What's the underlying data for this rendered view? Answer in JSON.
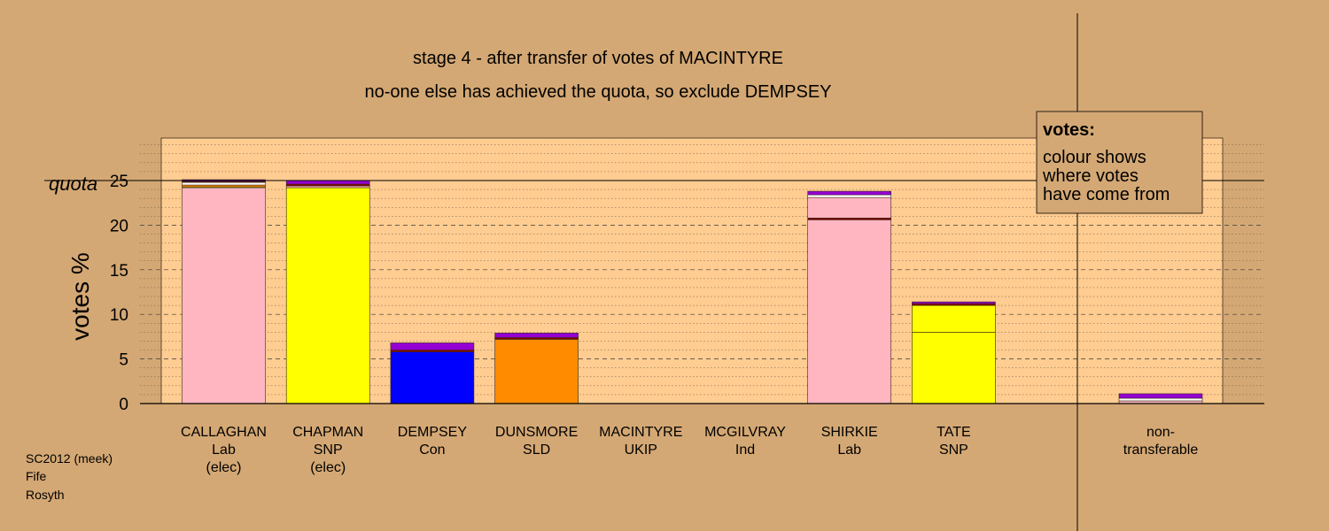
{
  "chart_data": {
    "type": "bar",
    "stacked": true,
    "title": "stage 4 - after transfer of votes of MACINTYRE",
    "subtitle": "no-one else has achieved the quota, so exclude DEMPSEY",
    "ylabel": "votes %",
    "ylim": [
      0,
      30
    ],
    "yticks": [
      "0",
      "5",
      "10",
      "15",
      "20",
      "25"
    ],
    "quota": {
      "label": "quota",
      "value": 25.0
    },
    "grid": true,
    "candidates": [
      {
        "name": "CALLAGHAN",
        "party": "Lab",
        "status": "(elec)",
        "segments": [
          {
            "value": 24.2,
            "color": "#ffb6c1"
          },
          {
            "value": 0.1,
            "color": "#ffff00"
          },
          {
            "value": 0.2,
            "color": "#ff8c00"
          },
          {
            "value": 0.3,
            "color": "#ffffff"
          },
          {
            "value": 0.1,
            "color": "#8b0000"
          },
          {
            "value": 0.2,
            "color": "#9400d3"
          }
        ]
      },
      {
        "name": "CHAPMAN",
        "party": "SNP",
        "status": "(elec)",
        "segments": [
          {
            "value": 24.2,
            "color": "#ffff00"
          },
          {
            "value": 0.2,
            "color": "#ffb6c1"
          },
          {
            "value": 0.2,
            "color": "#8b0000"
          },
          {
            "value": 0.4,
            "color": "#9400d3"
          }
        ]
      },
      {
        "name": "DEMPSEY",
        "party": "Con",
        "status": "",
        "segments": [
          {
            "value": 5.8,
            "color": "#0000ff"
          },
          {
            "value": 0.2,
            "color": "#8b0000"
          },
          {
            "value": 0.8,
            "color": "#9400d3"
          }
        ]
      },
      {
        "name": "DUNSMORE",
        "party": "SLD",
        "status": "",
        "segments": [
          {
            "value": 7.2,
            "color": "#ff8c00"
          },
          {
            "value": 0.2,
            "color": "#8b0000"
          },
          {
            "value": 0.5,
            "color": "#9400d3"
          }
        ]
      },
      {
        "name": "MACINTYRE",
        "party": "UKIP",
        "status": "",
        "segments": []
      },
      {
        "name": "MCGILVRAY",
        "party": "Ind",
        "status": "",
        "segments": []
      },
      {
        "name": "SHIRKIE",
        "party": "Lab",
        "status": "",
        "segments": [
          {
            "value": 20.6,
            "color": "#ffb6c1"
          },
          {
            "value": 0.2,
            "color": "#8b0000"
          },
          {
            "value": 2.3,
            "color": "#ffb6c1"
          },
          {
            "value": 0.3,
            "color": "#ffffff"
          },
          {
            "value": 0.4,
            "color": "#9400d3"
          }
        ]
      },
      {
        "name": "TATE",
        "party": "SNP",
        "status": "",
        "segments": [
          {
            "value": 8.0,
            "color": "#ffff00"
          },
          {
            "value": 3.0,
            "color": "#ffff00"
          },
          {
            "value": 0.2,
            "color": "#8b0000"
          },
          {
            "value": 0.2,
            "color": "#9400d3"
          }
        ]
      }
    ],
    "nontransferable": {
      "label": [
        "non-",
        "transferable"
      ],
      "segments": [
        {
          "value": 0.3,
          "color": "#ffb6c1"
        },
        {
          "value": 0.3,
          "color": "#ffffff"
        },
        {
          "value": 0.5,
          "color": "#9400d3"
        }
      ]
    },
    "legend": {
      "title": "votes:",
      "lines": [
        "colour shows",
        "where votes",
        "have come from"
      ],
      "placement": "top-right"
    }
  },
  "footer": [
    "SC2012 (meek)",
    "Fife",
    "Rosyth"
  ],
  "colors": {
    "background": "#d4a874",
    "plot_background": "#ffcc91",
    "legend_background": "#d4a874"
  }
}
